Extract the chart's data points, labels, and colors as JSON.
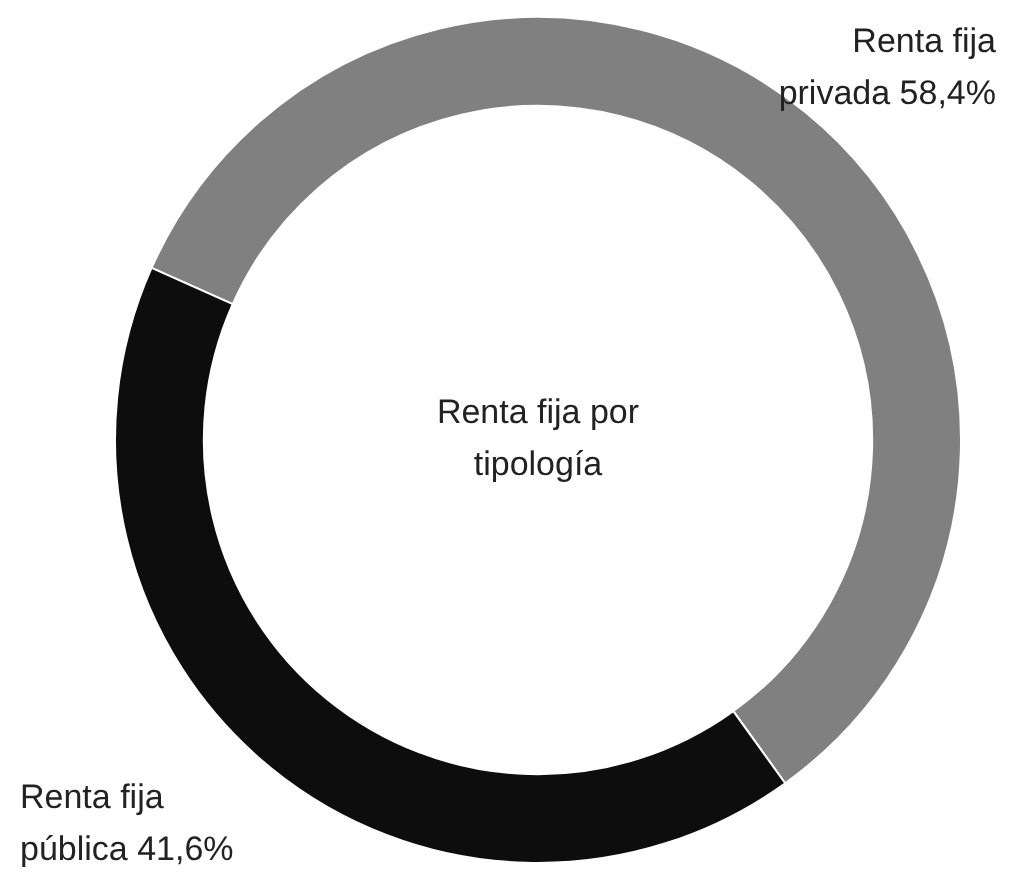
{
  "chart_data": {
    "type": "donut",
    "title": "Renta fija por tipología",
    "categories": [
      "Renta fija privada",
      "Renta fija pública"
    ],
    "values": [
      58.4,
      41.6
    ],
    "value_labels": [
      "58,4%",
      "41,6%"
    ],
    "colors": [
      "#808080",
      "#0d0d0d"
    ],
    "legend": false
  }
}
